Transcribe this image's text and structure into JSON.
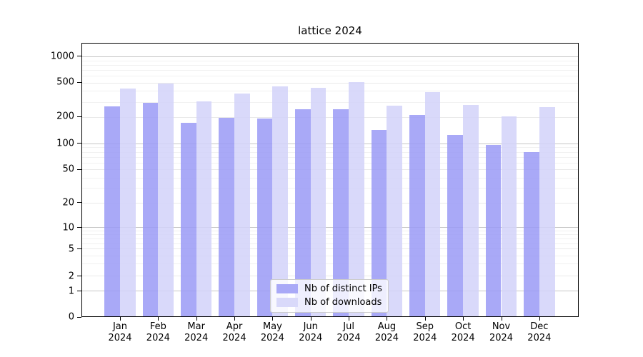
{
  "title": "lattice 2024",
  "chart_data": {
    "type": "bar",
    "title": "lattice 2024",
    "categories": [
      "Jan 2024",
      "Feb 2024",
      "Mar 2024",
      "Apr 2024",
      "May 2024",
      "Jun 2024",
      "Jul 2024",
      "Aug 2024",
      "Sep 2024",
      "Oct 2024",
      "Nov 2024",
      "Dec 2024"
    ],
    "series": [
      {
        "name": "Nb of distinct IPs",
        "color": "#a9a9f7",
        "values": [
          265,
          292,
          171,
          194,
          193,
          247,
          248,
          142,
          210,
          126,
          97,
          79
        ]
      },
      {
        "name": "Nb of downloads",
        "color": "#d9d9fa",
        "values": [
          430,
          485,
          306,
          376,
          456,
          438,
          506,
          272,
          386,
          275,
          204,
          261
        ]
      }
    ],
    "xlabel": "",
    "ylabel": "",
    "yscale": "symlog",
    "y_ticks": [
      0,
      1,
      2,
      5,
      10,
      20,
      50,
      100,
      200,
      500,
      1000
    ],
    "ylim": [
      0,
      1400
    ],
    "grid": true,
    "legend_position": "lower center"
  },
  "colors": {
    "bar_distinct_ips": "#a9a9f7",
    "bar_downloads": "#d9d9fa",
    "grid_decade": "#c6c6c6",
    "grid_labeled": "#e9e9e9",
    "grid_minor": "#f1f1f1",
    "axis": "#000000",
    "legend_border": "#cccccc"
  }
}
